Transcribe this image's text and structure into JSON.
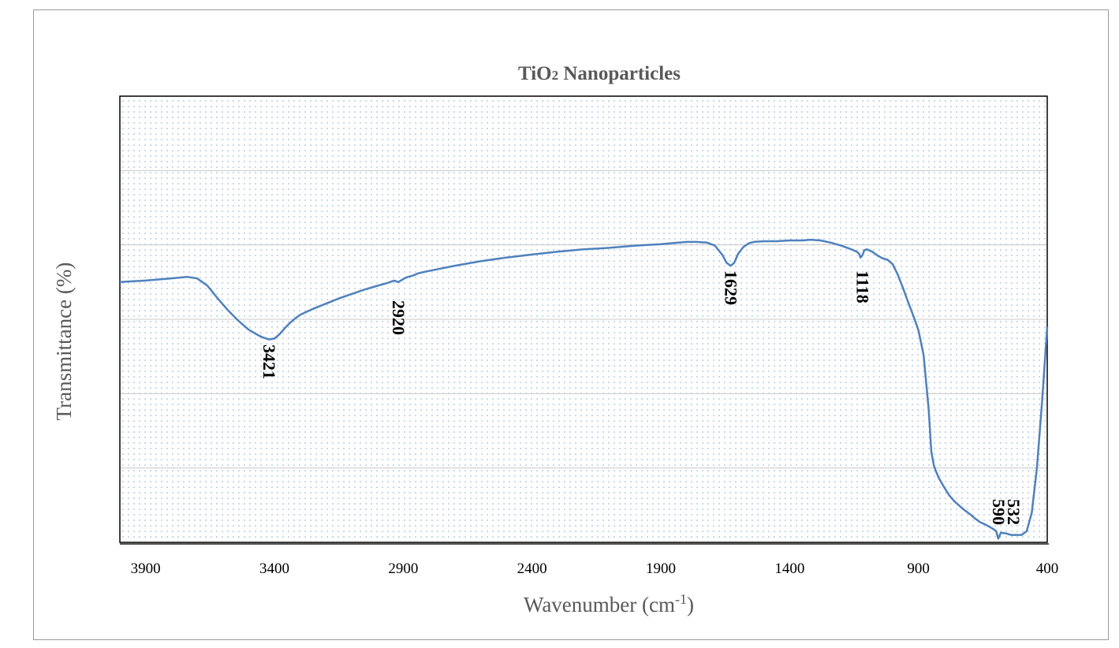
{
  "chart_data": {
    "type": "line",
    "title_main": "TiO",
    "title_sub": "2",
    "title_rest": " Nanoparticles",
    "xlabel_main": "Wavenumber (cm",
    "xlabel_sup": "-1",
    "xlabel_end": ")",
    "ylabel": "Transmittance (%)",
    "xlim": [
      4000,
      400
    ],
    "ylim": [
      0,
      6
    ],
    "grid": true,
    "xticks": [
      3900,
      3400,
      2900,
      2400,
      1900,
      1400,
      900,
      400
    ],
    "xtick_labels": [
      "3900",
      "3400",
      "2900",
      "2400",
      "1900",
      "1400",
      "900",
      "400"
    ],
    "line_color": "#4f81bd",
    "series": [
      {
        "x": [
          4000,
          3900,
          3800,
          3740,
          3700,
          3660,
          3620,
          3580,
          3540,
          3500,
          3460,
          3440,
          3421,
          3400,
          3380,
          3360,
          3340,
          3320,
          3300,
          3250,
          3200,
          3150,
          3100,
          3050,
          3000,
          2960,
          2935,
          2920,
          2905,
          2890,
          2880,
          2860,
          2840,
          2800,
          2700,
          2600,
          2500,
          2400,
          2300,
          2200,
          2100,
          2000,
          1900,
          1800,
          1760,
          1720,
          1690,
          1660,
          1645,
          1629,
          1615,
          1600,
          1580,
          1560,
          1540,
          1500,
          1450,
          1400,
          1350,
          1320,
          1280,
          1240,
          1200,
          1160,
          1140,
          1130,
          1125,
          1118,
          1110,
          1100,
          1080,
          1060,
          1040,
          1020,
          1000,
          980,
          960,
          940,
          920,
          900,
          880,
          860,
          850,
          840,
          830,
          820,
          800,
          780,
          760,
          740,
          720,
          700,
          680,
          660,
          640,
          620,
          605,
          598,
          590,
          580,
          560,
          540,
          532,
          520,
          500,
          480,
          460,
          440,
          420,
          400
        ],
        "y": [
          3.5,
          3.52,
          3.55,
          3.57,
          3.55,
          3.45,
          3.28,
          3.12,
          2.98,
          2.86,
          2.78,
          2.75,
          2.73,
          2.74,
          2.8,
          2.88,
          2.95,
          3.01,
          3.06,
          3.14,
          3.21,
          3.28,
          3.34,
          3.4,
          3.45,
          3.49,
          3.52,
          3.5,
          3.53,
          3.56,
          3.57,
          3.59,
          3.62,
          3.65,
          3.72,
          3.78,
          3.83,
          3.87,
          3.91,
          3.94,
          3.96,
          3.99,
          4.01,
          4.04,
          4.04,
          4.03,
          3.99,
          3.86,
          3.76,
          3.72,
          3.76,
          3.88,
          3.97,
          4.02,
          4.04,
          4.05,
          4.05,
          4.06,
          4.06,
          4.07,
          4.06,
          4.03,
          3.99,
          3.94,
          3.91,
          3.88,
          3.83,
          3.86,
          3.93,
          3.94,
          3.91,
          3.86,
          3.82,
          3.8,
          3.74,
          3.6,
          3.42,
          3.23,
          3.05,
          2.85,
          2.52,
          1.78,
          1.22,
          1.03,
          0.94,
          0.86,
          0.74,
          0.63,
          0.55,
          0.49,
          0.43,
          0.38,
          0.32,
          0.27,
          0.24,
          0.2,
          0.17,
          0.15,
          0.05,
          0.13,
          0.12,
          0.1,
          0.1,
          0.1,
          0.1,
          0.15,
          0.4,
          1.0,
          1.9,
          2.9
        ]
      }
    ],
    "annotations": [
      {
        "label": "3421",
        "x": 3421
      },
      {
        "label": "2920",
        "x": 2920
      },
      {
        "label": "1629",
        "x": 1629
      },
      {
        "label": "1118",
        "x": 1118
      },
      {
        "label": "590",
        "x": 590
      },
      {
        "label": "532",
        "x": 532
      }
    ]
  }
}
